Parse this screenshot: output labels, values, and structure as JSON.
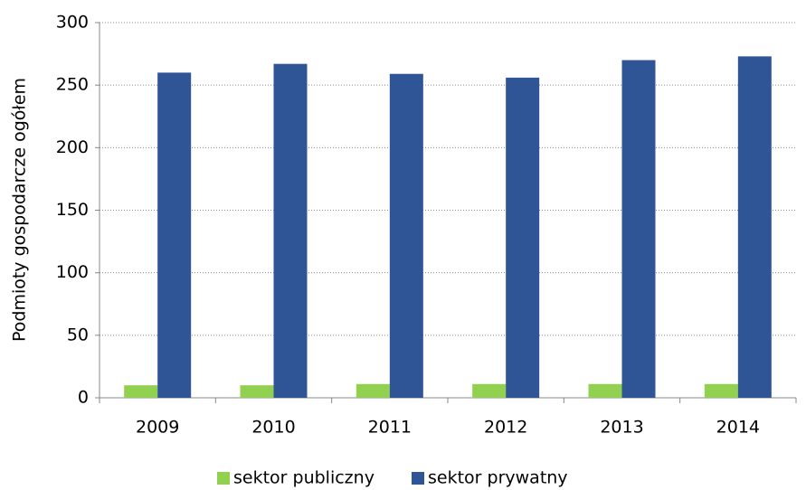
{
  "chart_data": {
    "type": "bar",
    "y_label": "Podmioty gospodarcze ogółem",
    "categories": [
      "2009",
      "2010",
      "2011",
      "2012",
      "2013",
      "2014"
    ],
    "series": [
      {
        "name": "sektor publiczny",
        "color": "#92d050",
        "values": [
          10,
          10,
          11,
          11,
          11,
          11
        ]
      },
      {
        "name": "sektor prywatny",
        "color": "#2f5597",
        "values": [
          260,
          267,
          259,
          256,
          270,
          273
        ]
      }
    ],
    "ylim": [
      0,
      300
    ],
    "yticks": [
      0,
      50,
      100,
      150,
      200,
      250,
      300
    ],
    "grid": true,
    "legend": "bottom"
  }
}
